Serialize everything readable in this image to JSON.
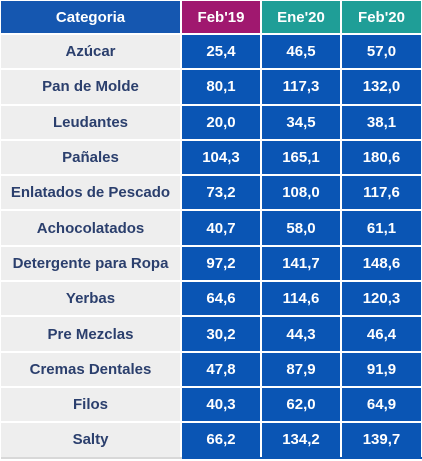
{
  "headers": [
    "Categoria",
    "Feb'19",
    "Ene'20",
    "Feb'20"
  ],
  "colors": {
    "header_category": "#1557b0",
    "header_feb19": "#a0186f",
    "header_2020": "#1f9e97",
    "value_cells": "#0a55b4",
    "name_cells": "#eeeeee",
    "name_text": "#2b3f6d"
  },
  "rows": [
    {
      "name": "Azúcar",
      "values": [
        "25,4",
        "46,5",
        "57,0"
      ]
    },
    {
      "name": "Pan de Molde",
      "values": [
        "80,1",
        "117,3",
        "132,0"
      ]
    },
    {
      "name": "Leudantes",
      "values": [
        "20,0",
        "34,5",
        "38,1"
      ]
    },
    {
      "name": "Pañales",
      "values": [
        "104,3",
        "165,1",
        "180,6"
      ]
    },
    {
      "name": "Enlatados de Pescado",
      "values": [
        "73,2",
        "108,0",
        "117,6"
      ]
    },
    {
      "name": "Achocolatados",
      "values": [
        "40,7",
        "58,0",
        "61,1"
      ]
    },
    {
      "name": "Detergente para Ropa",
      "values": [
        "97,2",
        "141,7",
        "148,6"
      ]
    },
    {
      "name": "Yerbas",
      "values": [
        "64,6",
        "114,6",
        "120,3"
      ]
    },
    {
      "name": "Pre Mezclas",
      "values": [
        "30,2",
        "44,3",
        "46,4"
      ]
    },
    {
      "name": "Cremas Dentales",
      "values": [
        "47,8",
        "87,9",
        "91,9"
      ]
    },
    {
      "name": "Filos",
      "values": [
        "40,3",
        "62,0",
        "64,9"
      ]
    },
    {
      "name": "Salty",
      "values": [
        "66,2",
        "134,2",
        "139,7"
      ]
    }
  ]
}
